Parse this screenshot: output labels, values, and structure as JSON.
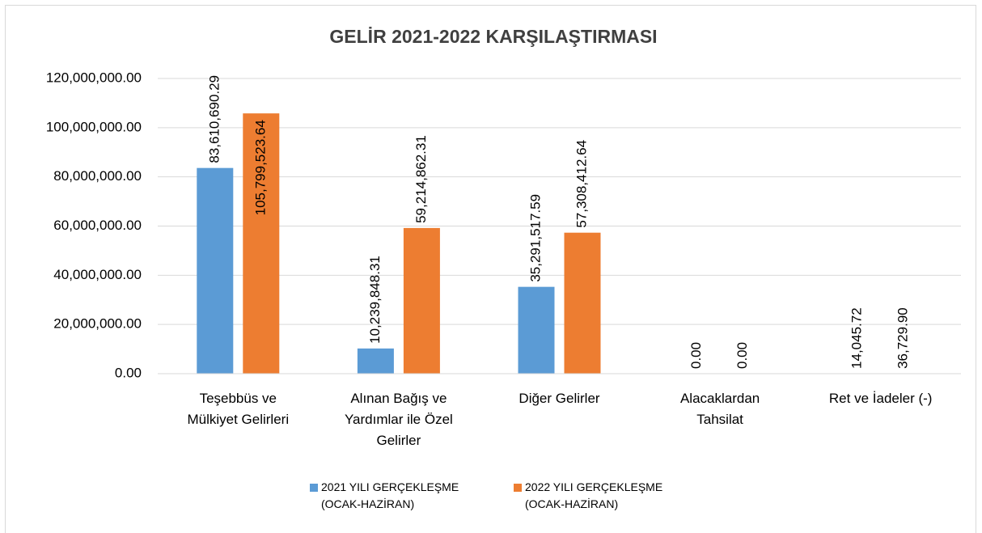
{
  "chart_data": {
    "type": "bar",
    "title": "GELİR 2021-2022 KARŞILAŞTIRMASI",
    "categories": [
      "Teşebbüs ve\nMülkiyet Gelirleri",
      "Alınan Bağış ve\nYardımlar ile Özel\nGelirler",
      "Diğer Gelirler",
      "Alacaklardan\nTahsilat",
      "Ret ve İadeler (-)"
    ],
    "series": [
      {
        "name": "2021 YILI GERÇEKLEŞME\n(OCAK-HAZİRAN)",
        "color": "#5b9bd5",
        "values": [
          83610690.29,
          10239848.31,
          35291517.59,
          0,
          14045.72
        ],
        "value_labels": [
          "83,610,690.29",
          "10,239,848.31",
          "35,291,517.59",
          "0.00",
          "14,045.72"
        ]
      },
      {
        "name": "2022 YILI GERÇEKLEŞME\n(OCAK-HAZİRAN)",
        "color": "#ed7d31",
        "values": [
          105799523.64,
          59214862.31,
          57308412.64,
          0,
          36729.9
        ],
        "value_labels": [
          "105,799,523.64",
          "59,214,862.31",
          "57,308,412.64",
          "0.00",
          "36,729.90"
        ]
      }
    ],
    "ylim": [
      0,
      120000000
    ],
    "yticks": [
      {
        "value": 0,
        "label": "0.00"
      },
      {
        "value": 20000000,
        "label": "20,000,000.00"
      },
      {
        "value": 40000000,
        "label": "40,000,000.00"
      },
      {
        "value": 60000000,
        "label": "60,000,000.00"
      },
      {
        "value": 80000000,
        "label": "80,000,000.00"
      },
      {
        "value": 100000000,
        "label": "100,000,000.00"
      },
      {
        "value": 120000000,
        "label": "120,000,000.00"
      }
    ],
    "grid": true,
    "legend": "bottom"
  }
}
